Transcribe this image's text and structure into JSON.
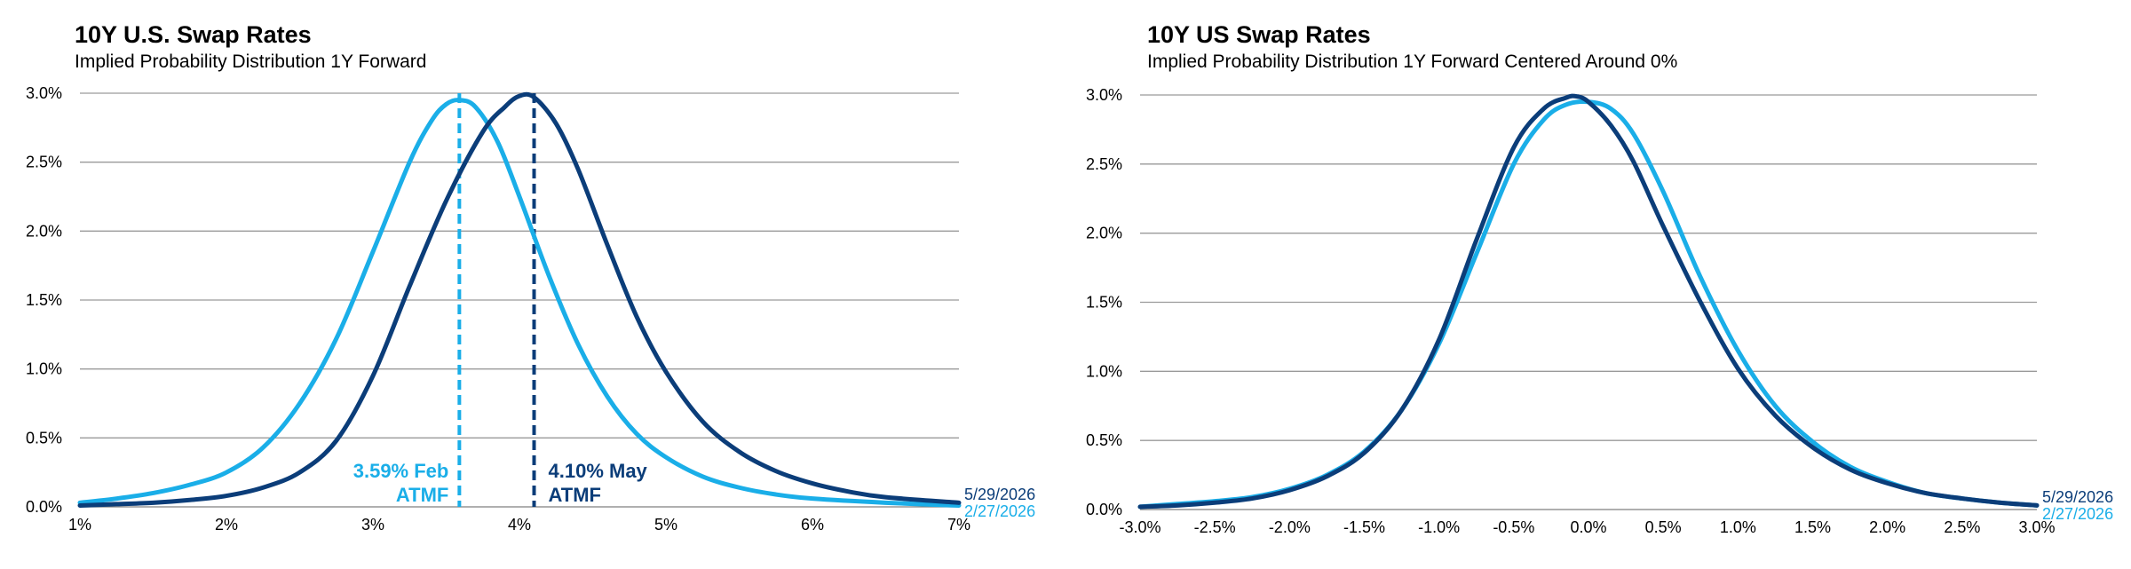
{
  "colors": {
    "may": "#0b3d79",
    "feb": "#1aaee8",
    "grid": "#9a9a9a"
  },
  "chart_data": [
    {
      "type": "line",
      "title": "10Y U.S. Swap Rates",
      "subtitle": "Implied Probability Distribution 1Y Forward",
      "xlim": [
        1,
        7
      ],
      "ylim": [
        0,
        3
      ],
      "x_ticks": [
        1,
        2,
        3,
        4,
        5,
        6,
        7
      ],
      "x_tick_labels": [
        "1%",
        "2%",
        "3%",
        "4%",
        "5%",
        "6%",
        "7%"
      ],
      "y_ticks": [
        0,
        0.5,
        1,
        1.5,
        2,
        2.5,
        3
      ],
      "y_tick_labels": [
        "0.0%",
        "0.5%",
        "1.0%",
        "1.5%",
        "2.0%",
        "2.5%",
        "3.0%"
      ],
      "grid": "horizontal",
      "legend_position": "right",
      "series": [
        {
          "name": "2/27/2026",
          "color": "#1aaee8",
          "x": [
            1,
            1.25,
            1.5,
            1.75,
            2,
            2.25,
            2.5,
            2.75,
            3,
            3.25,
            3.4,
            3.5,
            3.59,
            3.7,
            3.85,
            4,
            4.2,
            4.4,
            4.6,
            4.8,
            5,
            5.25,
            5.5,
            5.75,
            6,
            6.5,
            7
          ],
          "values": [
            0.03,
            0.06,
            0.1,
            0.16,
            0.25,
            0.43,
            0.75,
            1.22,
            1.85,
            2.5,
            2.8,
            2.92,
            2.95,
            2.9,
            2.65,
            2.25,
            1.68,
            1.18,
            0.8,
            0.53,
            0.36,
            0.22,
            0.14,
            0.09,
            0.06,
            0.03,
            0.01
          ]
        },
        {
          "name": "5/29/2026",
          "color": "#0b3d79",
          "x": [
            1,
            1.25,
            1.5,
            1.75,
            2,
            2.25,
            2.5,
            2.75,
            3,
            3.25,
            3.5,
            3.75,
            3.9,
            4,
            4.1,
            4.25,
            4.4,
            4.6,
            4.8,
            5,
            5.25,
            5.5,
            5.75,
            6,
            6.25,
            6.5,
            7
          ],
          "values": [
            0.01,
            0.02,
            0.03,
            0.05,
            0.08,
            0.14,
            0.25,
            0.48,
            0.95,
            1.6,
            2.22,
            2.72,
            2.9,
            2.98,
            2.97,
            2.78,
            2.45,
            1.9,
            1.38,
            0.98,
            0.62,
            0.4,
            0.26,
            0.17,
            0.11,
            0.07,
            0.03
          ]
        }
      ],
      "annotations": [
        {
          "x": 3.59,
          "label_line1": "3.59% Feb",
          "label_line2": "ATMF",
          "color": "#1aaee8",
          "side": "left"
        },
        {
          "x": 4.1,
          "label_line1": "4.10% May",
          "label_line2": "ATMF",
          "color": "#0b3d79",
          "side": "right"
        }
      ]
    },
    {
      "type": "line",
      "title": "10Y US Swap Rates",
      "subtitle": "Implied Probability Distribution 1Y Forward Centered Around 0%",
      "xlim": [
        -3,
        3
      ],
      "ylim": [
        0,
        3
      ],
      "x_ticks": [
        -3,
        -2.5,
        -2,
        -1.5,
        -1,
        -0.5,
        0,
        0.5,
        1,
        1.5,
        2,
        2.5,
        3
      ],
      "x_tick_labels": [
        "-3.0%",
        "-2.5%",
        "-2.0%",
        "-1.5%",
        "-1.0%",
        "-0.5%",
        "0.0%",
        "0.5%",
        "1.0%",
        "1.5%",
        "2.0%",
        "2.5%",
        "3.0%"
      ],
      "y_ticks": [
        0,
        0.5,
        1,
        1.5,
        2,
        2.5,
        3
      ],
      "y_tick_labels": [
        "0.0%",
        "0.5%",
        "1.0%",
        "1.5%",
        "2.0%",
        "2.5%",
        "3.0%"
      ],
      "grid": "horizontal",
      "legend_position": "right",
      "series": [
        {
          "name": "2/27/2026",
          "color": "#1aaee8",
          "x": [
            -3,
            -2.75,
            -2.5,
            -2.25,
            -2,
            -1.75,
            -1.5,
            -1.25,
            -1,
            -0.75,
            -0.5,
            -0.3,
            -0.15,
            0,
            0.15,
            0.3,
            0.5,
            0.75,
            1,
            1.25,
            1.5,
            1.75,
            2,
            2.25,
            2.5,
            2.75,
            3
          ],
          "values": [
            0.02,
            0.04,
            0.06,
            0.09,
            0.15,
            0.25,
            0.42,
            0.72,
            1.2,
            1.85,
            2.5,
            2.82,
            2.93,
            2.95,
            2.9,
            2.72,
            2.3,
            1.68,
            1.15,
            0.75,
            0.49,
            0.31,
            0.2,
            0.12,
            0.08,
            0.05,
            0.03
          ]
        },
        {
          "name": "5/29/2026",
          "color": "#0b3d79",
          "x": [
            -3,
            -2.75,
            -2.5,
            -2.25,
            -2,
            -1.75,
            -1.5,
            -1.25,
            -1,
            -0.75,
            -0.5,
            -0.3,
            -0.15,
            -0.08,
            0,
            0.15,
            0.3,
            0.5,
            0.75,
            1,
            1.25,
            1.5,
            1.75,
            2,
            2.25,
            2.5,
            2.75,
            3
          ],
          "values": [
            0.02,
            0.03,
            0.05,
            0.08,
            0.14,
            0.24,
            0.41,
            0.72,
            1.23,
            1.95,
            2.62,
            2.9,
            2.98,
            2.99,
            2.95,
            2.78,
            2.52,
            2.05,
            1.5,
            1.02,
            0.68,
            0.45,
            0.29,
            0.19,
            0.12,
            0.08,
            0.05,
            0.03
          ]
        }
      ]
    }
  ]
}
